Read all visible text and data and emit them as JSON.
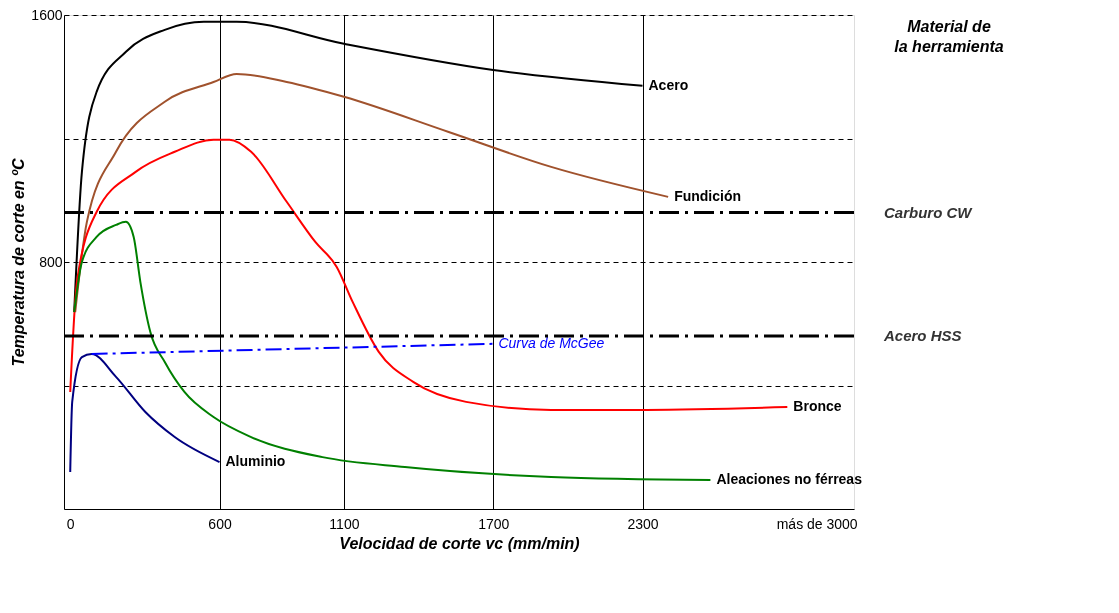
{
  "chart_data": {
    "type": "line",
    "xlabel": "Velocidad de corte vc (mm/min)",
    "ylabel": "Temperatura de corte en ºC",
    "xlim": [
      -25,
      3150
    ],
    "xticks": [
      0,
      600,
      1100,
      1700,
      2300,
      {
        "value": 3000,
        "label": "más de 3000"
      }
    ],
    "ylim": [
      0,
      1600
    ],
    "yticks": [
      {
        "value": 400,
        "label": null
      },
      800,
      {
        "value": 1200,
        "label": null
      },
      1600
    ],
    "grid": true,
    "marker": "none",
    "line_style": "solid",
    "series": [
      {
        "name": "Acero",
        "color": "#000000",
        "x": [
          16,
          47,
          106,
          224,
          380,
          537,
          669,
          1100,
          1700,
          2300
        ],
        "values": [
          638,
          1092,
          1351,
          1481,
          1552,
          1578,
          1578,
          1507,
          1422,
          1371
        ]
      },
      {
        "name": "Fundición",
        "color": "#a0522d",
        "x": [
          20,
          67,
          184,
          380,
          576,
          669,
          870,
          1100,
          1521,
          1933,
          2403
        ],
        "values": [
          638,
          930,
          1157,
          1319,
          1383,
          1409,
          1383,
          1335,
          1221,
          1108,
          1011
        ]
      },
      {
        "name": "Bronce",
        "color": "#ff0000",
        "x": [
          0,
          27,
          106,
          263,
          420,
          576,
          640,
          727,
          870,
          985,
          1071,
          1135,
          1240,
          1380,
          1591,
          1933,
          2315,
          2882
        ],
        "values": [
          379,
          735,
          962,
          1092,
          1157,
          1196,
          1196,
          1157,
          995,
          865,
          784,
          671,
          509,
          411,
          347,
          321,
          321,
          330
        ]
      },
      {
        "name": "Aleaciones no férreas",
        "color": "#008000",
        "x": [
          16,
          47,
          106,
          184,
          224,
          255,
          282,
          322,
          380,
          459,
          576,
          727,
          1014,
          1345,
          1933,
          2573
        ],
        "values": [
          638,
          800,
          881,
          920,
          930,
          881,
          735,
          573,
          476,
          379,
          298,
          233,
          168,
          136,
          104,
          94
        ]
      },
      {
        "name": "Aluminio",
        "color": "#000080",
        "x": [
          0,
          8,
          47,
          86,
          184,
          302,
          420,
          600
        ],
        "values": [
          120,
          347,
          492,
          502,
          428,
          314,
          233,
          152
        ]
      },
      {
        "name": "Curva de McGee",
        "color": "#0000ff",
        "line_style": "dashed",
        "x": [
          86,
          1697
        ],
        "values": [
          502,
          535
        ]
      }
    ],
    "ref_lines": [
      {
        "axis": "y",
        "value": 960,
        "label": "Carburo CW",
        "color": "#000000",
        "line_style": "dashed"
      },
      {
        "axis": "y",
        "value": 560,
        "label": "Acero HSS",
        "color": "#000000",
        "line_style": "dashed"
      }
    ],
    "annotations": [
      "Material de la herramienta"
    ]
  }
}
